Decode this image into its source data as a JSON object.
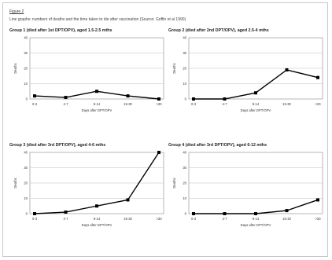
{
  "figure": {
    "label": "Figure 2",
    "caption": "Line graphs: numbers of deaths and the time taken to die after vaccination (Source: Griffin et al 1990)"
  },
  "chart_data": [
    {
      "type": "line",
      "title": "Group 1 (died after 1st DPT/OPV), aged 1.5-2.5 mths",
      "categories": [
        "0-3",
        "4-7",
        "8-14",
        "15-30",
        ">30"
      ],
      "values": [
        2,
        1,
        5,
        2,
        0
      ],
      "xlabel": "Days after DPT/OPV",
      "ylabel": "Deaths",
      "ylim": [
        0,
        40
      ],
      "yticks": [
        0,
        10,
        20,
        30,
        40
      ],
      "grid": true,
      "line_color": "#000000"
    },
    {
      "type": "line",
      "title": "Group 2 (died after 2nd DPT/OPV), aged 2.5-4 mths",
      "categories": [
        "0-3",
        "4-7",
        "8-14",
        "15-30",
        ">30"
      ],
      "values": [
        0,
        0,
        4,
        19,
        14
      ],
      "xlabel": "Days after DPT/OPV",
      "ylabel": "Deaths",
      "ylim": [
        0,
        40
      ],
      "yticks": [
        0,
        10,
        20,
        30,
        40
      ],
      "grid": true,
      "line_color": "#000000"
    },
    {
      "type": "line",
      "title": "Group 3 (died after 3rd DPT/OPV), aged 4-6 mths",
      "categories": [
        "0-3",
        "4-7",
        "8-14",
        "15-30",
        ">30"
      ],
      "values": [
        0,
        1,
        5,
        9,
        40
      ],
      "xlabel": "Days after DPT/OPV",
      "ylabel": "Deaths",
      "ylim": [
        0,
        40
      ],
      "yticks": [
        0,
        10,
        20,
        30,
        40
      ],
      "grid": true,
      "line_color": "#000000"
    },
    {
      "type": "line",
      "title": "Group 4 (died after 3rd DPT/OPV), aged 6-12 mths",
      "categories": [
        "0-3",
        "4-7",
        "8-14",
        "15-30",
        ">30"
      ],
      "values": [
        0,
        0,
        0,
        2,
        9
      ],
      "xlabel": "Days after DPT/OPV",
      "ylabel": "Deaths",
      "ylim": [
        0,
        40
      ],
      "yticks": [
        0,
        10,
        20,
        30,
        40
      ],
      "grid": true,
      "line_color": "#000000"
    }
  ]
}
